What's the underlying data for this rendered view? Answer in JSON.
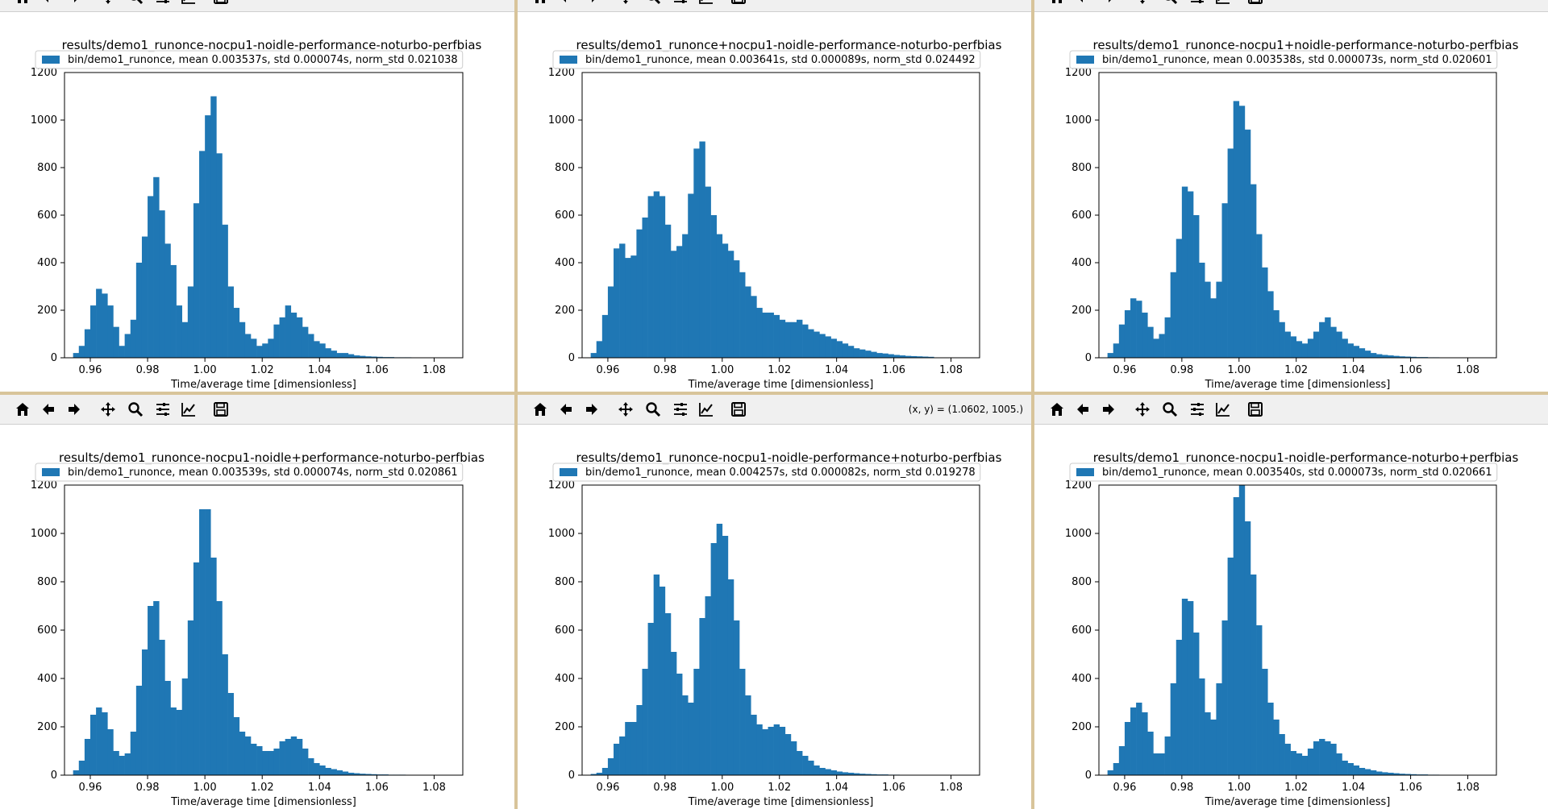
{
  "window": {
    "toolbar_tools": [
      {
        "icon": "home-icon",
        "label": "Home"
      },
      {
        "icon": "back-arrow-icon",
        "label": "Back"
      },
      {
        "icon": "forward-arrow-icon",
        "label": "Forward"
      },
      {
        "icon": "pan-move-icon",
        "label": "Pan"
      },
      {
        "icon": "zoom-magnifier-icon",
        "label": "Zoom"
      },
      {
        "icon": "configure-subplots-icon",
        "label": "Subplots"
      },
      {
        "icon": "edit-axes-icon",
        "label": "Customize"
      },
      {
        "icon": "save-floppy-icon",
        "label": "Save"
      }
    ],
    "coordinate_readout": "(x, y) = (1.0602, 1005.)",
    "colors": {
      "bar": "#1f77b4",
      "divider": "#d8c49a",
      "toolbar": "#f0f0f0"
    }
  },
  "chart_data": [
    {
      "type": "bar",
      "title": "results/demo1_runonce-nocpu1-noidle-performance-noturbo-perfbias",
      "legend": "bin/demo1_runonce, mean 0.003537s, std 0.000074s, norm_std 0.021038",
      "legend_position": "upper-left",
      "xlabel": "Time/average time [dimensionless]",
      "ylabel": "",
      "xlim": [
        0.951,
        1.09
      ],
      "ylim": [
        0,
        1200
      ],
      "xticks": [
        "0.96",
        "0.98",
        "1.00",
        "1.02",
        "1.04",
        "1.06",
        "1.08"
      ],
      "yticks": [
        "0",
        "200",
        "400",
        "600",
        "800",
        "1000",
        "1200"
      ],
      "bin_start": 0.954,
      "bin_width": 0.002,
      "values": [
        20,
        50,
        120,
        220,
        290,
        270,
        220,
        130,
        50,
        100,
        160,
        400,
        510,
        680,
        760,
        620,
        480,
        390,
        220,
        150,
        300,
        650,
        870,
        1020,
        1100,
        860,
        560,
        300,
        210,
        150,
        100,
        80,
        50,
        60,
        80,
        140,
        170,
        220,
        190,
        170,
        130,
        100,
        70,
        60,
        40,
        30,
        20,
        20,
        15,
        10,
        8,
        6,
        5,
        4,
        3,
        3,
        2,
        2,
        2,
        1,
        1
      ]
    },
    {
      "type": "bar",
      "title": "results/demo1_runonce+nocpu1-noidle-performance-noturbo-perfbias",
      "legend": "bin/demo1_runonce, mean 0.003641s, std 0.000089s, norm_std 0.024492",
      "legend_position": "upper-left",
      "xlabel": "Time/average time [dimensionless]",
      "ylabel": "",
      "xlim": [
        0.951,
        1.09
      ],
      "ylim": [
        0,
        1200
      ],
      "xticks": [
        "0.96",
        "0.98",
        "1.00",
        "1.02",
        "1.04",
        "1.06",
        "1.08"
      ],
      "yticks": [
        "0",
        "200",
        "400",
        "600",
        "800",
        "1000",
        "1200"
      ],
      "bin_start": 0.954,
      "bin_width": 0.002,
      "values": [
        20,
        70,
        180,
        300,
        460,
        480,
        420,
        430,
        540,
        590,
        680,
        700,
        680,
        560,
        450,
        470,
        520,
        690,
        880,
        910,
        720,
        600,
        520,
        480,
        450,
        410,
        360,
        300,
        260,
        210,
        190,
        190,
        180,
        160,
        150,
        150,
        160,
        140,
        120,
        110,
        100,
        90,
        80,
        70,
        60,
        50,
        40,
        35,
        30,
        25,
        20,
        18,
        15,
        12,
        10,
        8,
        7,
        6,
        5,
        4
      ]
    },
    {
      "type": "bar",
      "title": "results/demo1_runonce-nocpu1+noidle-performance-noturbo-perfbias",
      "legend": "bin/demo1_runonce, mean 0.003538s, std 0.000073s, norm_std 0.020601",
      "legend_position": "upper-left",
      "xlabel": "Time/average time [dimensionless]",
      "ylabel": "",
      "xlim": [
        0.951,
        1.09
      ],
      "ylim": [
        0,
        1200
      ],
      "xticks": [
        "0.96",
        "0.98",
        "1.00",
        "1.02",
        "1.04",
        "1.06",
        "1.08"
      ],
      "yticks": [
        "0",
        "200",
        "400",
        "600",
        "800",
        "1000",
        "1200"
      ],
      "bin_start": 0.954,
      "bin_width": 0.002,
      "values": [
        20,
        60,
        140,
        200,
        250,
        240,
        190,
        130,
        80,
        100,
        170,
        360,
        500,
        720,
        700,
        600,
        400,
        320,
        250,
        320,
        650,
        880,
        1080,
        1060,
        960,
        730,
        520,
        380,
        280,
        200,
        150,
        110,
        90,
        70,
        60,
        80,
        110,
        150,
        170,
        130,
        110,
        80,
        60,
        50,
        40,
        30,
        20,
        15,
        12,
        10,
        8,
        6,
        5,
        4,
        3,
        3,
        2,
        2,
        1,
        1
      ]
    },
    {
      "type": "bar",
      "title": "results/demo1_runonce-nocpu1-noidle+performance-noturbo-perfbias",
      "legend": "bin/demo1_runonce, mean 0.003539s, std 0.000074s, norm_std 0.020861",
      "legend_position": "upper-left",
      "xlabel": "Time/average time [dimensionless]",
      "ylabel": "",
      "xlim": [
        0.951,
        1.09
      ],
      "ylim": [
        0,
        1200
      ],
      "xticks": [
        "0.96",
        "0.98",
        "1.00",
        "1.02",
        "1.04",
        "1.06",
        "1.08"
      ],
      "yticks": [
        "0",
        "200",
        "400",
        "600",
        "800",
        "1000",
        "1200"
      ],
      "bin_start": 0.954,
      "bin_width": 0.002,
      "values": [
        20,
        60,
        150,
        250,
        280,
        260,
        190,
        100,
        80,
        90,
        180,
        370,
        520,
        700,
        720,
        560,
        390,
        280,
        270,
        400,
        640,
        880,
        1100,
        1100,
        900,
        720,
        500,
        340,
        240,
        180,
        160,
        130,
        120,
        100,
        100,
        110,
        140,
        150,
        160,
        150,
        110,
        70,
        50,
        40,
        30,
        25,
        20,
        15,
        10,
        8,
        6,
        5,
        4,
        3,
        3,
        2,
        2,
        2,
        1,
        1
      ]
    },
    {
      "type": "bar",
      "title": "results/demo1_runonce-nocpu1-noidle-performance+noturbo-perfbias",
      "legend": "bin/demo1_runonce, mean 0.004257s, std 0.000082s, norm_std 0.019278",
      "legend_position": "upper-left",
      "xlabel": "Time/average time [dimensionless]",
      "ylabel": "",
      "xlim": [
        0.951,
        1.09
      ],
      "ylim": [
        0,
        1200
      ],
      "xticks": [
        "0.96",
        "0.98",
        "1.00",
        "1.02",
        "1.04",
        "1.06",
        "1.08"
      ],
      "yticks": [
        "0",
        "200",
        "400",
        "600",
        "800",
        "1000",
        "1200"
      ],
      "bin_start": 0.954,
      "bin_width": 0.002,
      "values": [
        5,
        10,
        30,
        70,
        130,
        160,
        220,
        220,
        290,
        440,
        630,
        830,
        780,
        670,
        510,
        420,
        330,
        300,
        440,
        650,
        740,
        960,
        1040,
        990,
        810,
        640,
        440,
        330,
        250,
        210,
        190,
        200,
        210,
        200,
        170,
        140,
        100,
        80,
        60,
        40,
        30,
        25,
        20,
        15,
        12,
        10,
        8,
        6,
        5,
        4,
        3,
        3,
        2,
        2,
        1,
        1
      ]
    },
    {
      "type": "bar",
      "title": "results/demo1_runonce-nocpu1-noidle-performance-noturbo+perfbias",
      "legend": "bin/demo1_runonce, mean 0.003540s, std 0.000073s, norm_std 0.020661",
      "legend_position": "upper-left",
      "xlabel": "Time/average time [dimensionless]",
      "ylabel": "",
      "xlim": [
        0.951,
        1.09
      ],
      "ylim": [
        0,
        1200
      ],
      "xticks": [
        "0.96",
        "0.98",
        "1.00",
        "1.02",
        "1.04",
        "1.06",
        "1.08"
      ],
      "yticks": [
        "0",
        "200",
        "400",
        "600",
        "800",
        "1000",
        "1200"
      ],
      "bin_start": 0.954,
      "bin_width": 0.002,
      "values": [
        20,
        50,
        120,
        220,
        280,
        300,
        260,
        180,
        90,
        90,
        160,
        380,
        560,
        730,
        720,
        590,
        400,
        260,
        230,
        380,
        640,
        900,
        1150,
        1220,
        1050,
        830,
        620,
        440,
        300,
        230,
        170,
        130,
        100,
        90,
        80,
        110,
        140,
        150,
        140,
        130,
        90,
        60,
        50,
        40,
        30,
        25,
        20,
        15,
        12,
        10,
        8,
        6,
        5,
        4,
        3,
        3,
        2,
        2,
        1,
        1
      ]
    }
  ]
}
